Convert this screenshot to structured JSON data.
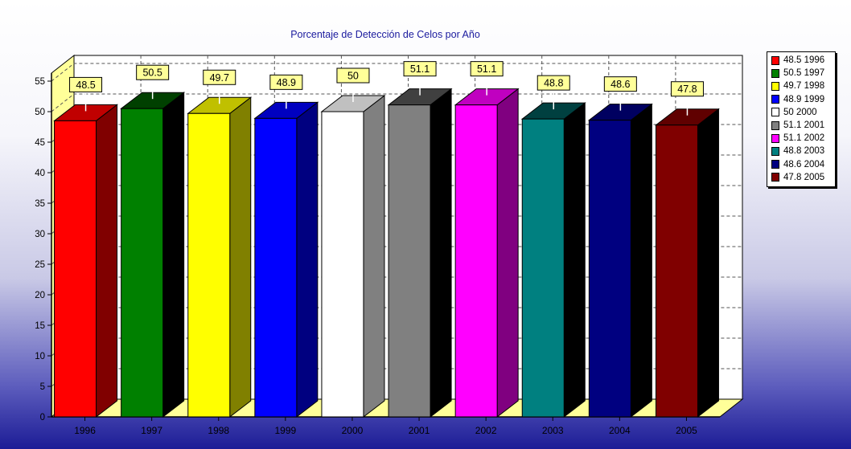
{
  "chart_data": {
    "type": "bar",
    "title": "Porcentaje de Detección de Celos por Año",
    "xlabel": "",
    "ylabel": "",
    "categories": [
      "1996",
      "1997",
      "1998",
      "1999",
      "2000",
      "2001",
      "2002",
      "2003",
      "2004",
      "2005"
    ],
    "values": [
      48.5,
      50.5,
      49.7,
      48.9,
      50,
      51.1,
      51.1,
      48.8,
      48.6,
      47.8
    ],
    "value_labels": [
      "48.5",
      "50.5",
      "49.7",
      "48.9",
      "50",
      "51.1",
      "51.1",
      "48.8",
      "48.6",
      "47.8"
    ],
    "colors": [
      "#ff0000",
      "#008000",
      "#ffff00",
      "#0000ff",
      "#ffffff",
      "#808080",
      "#ff00ff",
      "#008080",
      "#000080",
      "#800000"
    ],
    "side_colors": [
      "#800000",
      "#000000",
      "#808000",
      "#000080",
      "#808080",
      "#000000",
      "#800080",
      "#000000",
      "#000000",
      "#000000"
    ],
    "top_colors": [
      "#c00000",
      "#004000",
      "#c0c000",
      "#0000c0",
      "#c0c0c0",
      "#404040",
      "#c000c0",
      "#004040",
      "#000060",
      "#600000"
    ],
    "ylim": [
      0,
      55
    ],
    "yticks": [
      "0",
      "5",
      "10",
      "15",
      "20",
      "25",
      "30",
      "35",
      "40",
      "45",
      "50",
      "55"
    ],
    "grid": true,
    "legend_position": "right",
    "legend_labels": [
      "48.5 1996",
      "50.5 1997",
      "49.7 1998",
      "48.9 1999",
      "50 2000",
      "51.1 2001",
      "51.1 2002",
      "48.8 2003",
      "48.6 2004",
      "47.8 2005"
    ],
    "view": "3d"
  }
}
